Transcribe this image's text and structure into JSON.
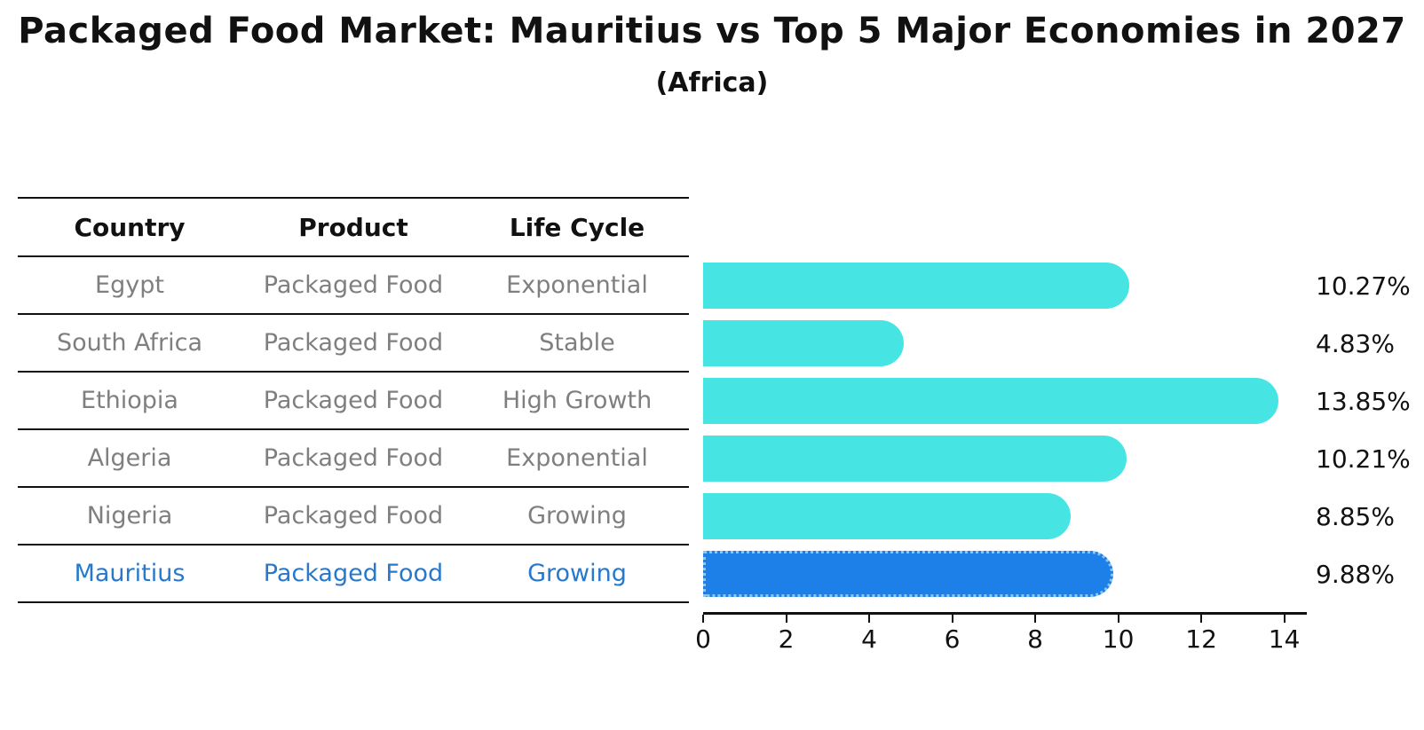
{
  "title": "Packaged Food Market: Mauritius vs Top 5 Major Economies in 2027",
  "subtitle": "(Africa)",
  "table": {
    "headers": [
      "Country",
      "Product",
      "Life Cycle"
    ],
    "rows": [
      {
        "country": "Egypt",
        "product": "Packaged Food",
        "life_cycle": "Exponential"
      },
      {
        "country": "South Africa",
        "product": "Packaged Food",
        "life_cycle": "Stable"
      },
      {
        "country": "Ethiopia",
        "product": "Packaged Food",
        "life_cycle": "High Growth"
      },
      {
        "country": "Algeria",
        "product": "Packaged Food",
        "life_cycle": "Exponential"
      },
      {
        "country": "Nigeria",
        "product": "Packaged Food",
        "life_cycle": "Growing"
      },
      {
        "country": "Mauritius",
        "product": "Packaged Food",
        "life_cycle": "Growing"
      }
    ]
  },
  "chart_data": {
    "type": "bar",
    "orientation": "horizontal",
    "title": "Packaged Food Market: Mauritius vs Top 5 Major Economies in 2027 (Africa)",
    "categories": [
      "Egypt",
      "South Africa",
      "Ethiopia",
      "Algeria",
      "Nigeria",
      "Mauritius"
    ],
    "values": [
      10.27,
      4.83,
      13.85,
      10.21,
      8.85,
      9.88
    ],
    "value_labels": [
      "10.27%",
      "4.83%",
      "13.85%",
      "10.21%",
      "8.85%",
      "9.88%"
    ],
    "xlim": [
      0,
      14.5
    ],
    "x_ticks": [
      "0",
      "2",
      "4",
      "6",
      "8",
      "10",
      "12",
      "14"
    ],
    "grid": false,
    "legend": false,
    "highlight_index": 5,
    "bar_color": "#46e5e3",
    "highlight_bar_color": "#1d80e8",
    "highlight_text_color": "#2879cc",
    "text_muted_color": "#7f7f7f",
    "axis_color": "#111111"
  }
}
